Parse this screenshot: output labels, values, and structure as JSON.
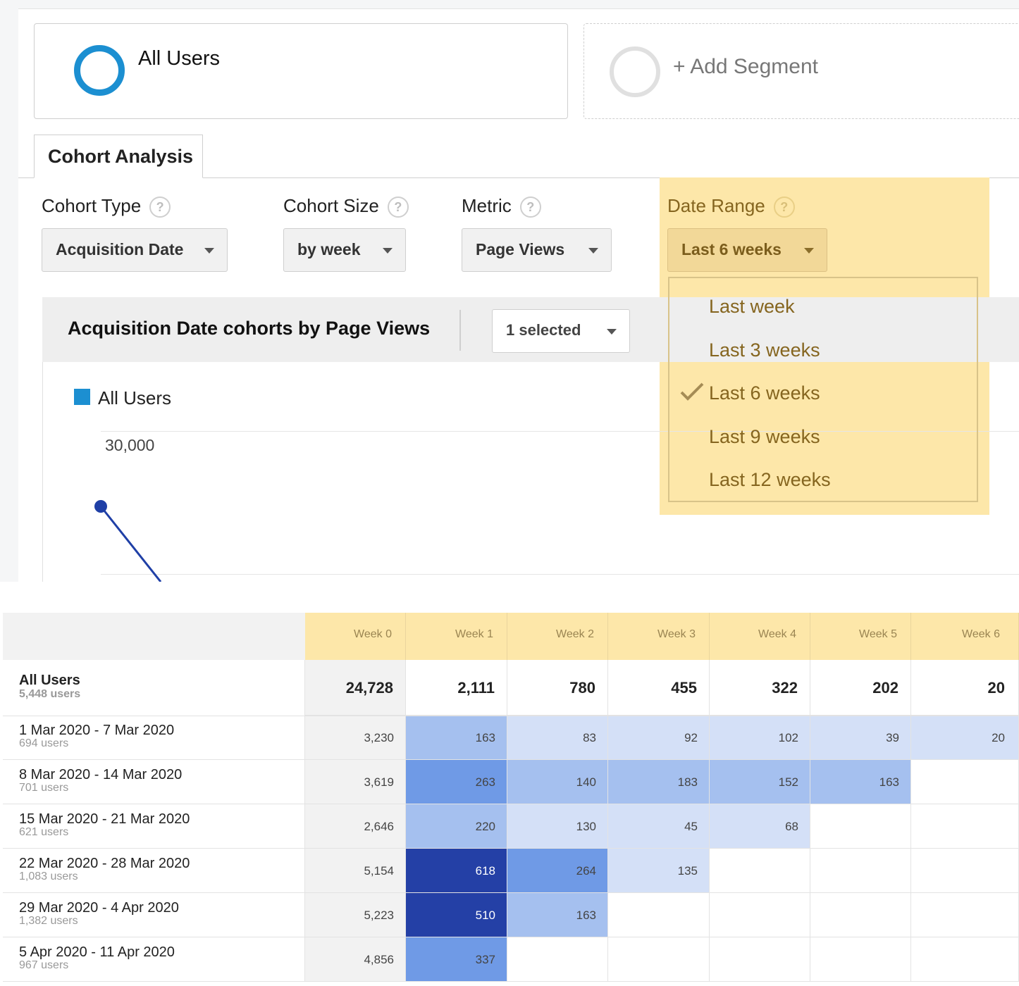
{
  "segments": {
    "all_users_label": "All Users",
    "add_segment_label": "+ Add Segment"
  },
  "tab": {
    "label": "Cohort Analysis"
  },
  "controls": {
    "cohort_type": {
      "label": "Cohort Type",
      "value": "Acquisition Date"
    },
    "cohort_size": {
      "label": "Cohort Size",
      "value": "by week"
    },
    "metric": {
      "label": "Metric",
      "value": "Page Views"
    },
    "date_range": {
      "label": "Date Range",
      "value": "Last 6 weeks",
      "options": [
        "Last week",
        "Last 3 weeks",
        "Last 6 weeks",
        "Last 9 weeks",
        "Last 12 weeks"
      ],
      "selected_option": "Last 6 weeks"
    },
    "help_glyph": "?"
  },
  "chart_header": {
    "title": "Acquisition Date cohorts by Page Views",
    "selection": "1 selected"
  },
  "chart_data": {
    "type": "line",
    "legend": [
      "All Users"
    ],
    "y_tick_labels": [
      "30,000"
    ],
    "series": [
      {
        "name": "All Users",
        "color": "#1f3fa6"
      }
    ]
  },
  "table": {
    "week_headers": [
      "Week 0",
      "Week 1",
      "Week 2",
      "Week 3",
      "Week 4",
      "Week 5",
      "Week 6"
    ],
    "total": {
      "name": "All Users",
      "users": "5,448 users",
      "values": [
        "24,728",
        "2,111",
        "780",
        "455",
        "322",
        "202",
        "20"
      ]
    },
    "rows": [
      {
        "name": "1 Mar 2020 - 7 Mar 2020",
        "users": "694 users",
        "values": [
          "3,230",
          "163",
          "83",
          "92",
          "102",
          "39",
          "20"
        ]
      },
      {
        "name": "8 Mar 2020 - 14 Mar 2020",
        "users": "701 users",
        "values": [
          "3,619",
          "263",
          "140",
          "183",
          "152",
          "163"
        ]
      },
      {
        "name": "15 Mar 2020 - 21 Mar 2020",
        "users": "621 users",
        "values": [
          "2,646",
          "220",
          "130",
          "45",
          "68"
        ]
      },
      {
        "name": "22 Mar 2020 - 28 Mar 2020",
        "users": "1,083 users",
        "values": [
          "5,154",
          "618",
          "264",
          "135"
        ]
      },
      {
        "name": "29 Mar 2020 - 4 Apr 2020",
        "users": "1,382 users",
        "values": [
          "5,223",
          "510",
          "163"
        ]
      },
      {
        "name": "5 Apr 2020 - 11 Apr 2020",
        "users": "967 users",
        "values": [
          "4,856",
          "337"
        ]
      }
    ],
    "heat_colors": {
      "lightest": "#d4e0f7",
      "light": "#a5c0ef",
      "medium": "#6f9ae6",
      "dark": "#2440a6"
    }
  }
}
